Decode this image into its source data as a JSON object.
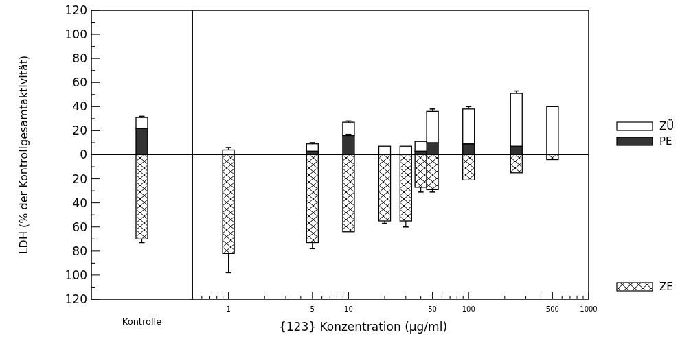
{
  "chart_data": [
    {
      "type": "bar",
      "ylabel": "LDH (% der Kontrollgesamtaktivität)",
      "categories": [
        "Kontrolle"
      ],
      "stacked": true,
      "ylim": [
        -120,
        120
      ],
      "yticks": [
        {
          "value": -120,
          "label": "120"
        },
        {
          "value": -110,
          "label": null
        },
        {
          "value": -100,
          "label": "100"
        },
        {
          "value": -90,
          "label": null
        },
        {
          "value": -80,
          "label": "80"
        },
        {
          "value": -70,
          "label": null
        },
        {
          "value": -60,
          "label": "60"
        },
        {
          "value": -50,
          "label": null
        },
        {
          "value": -40,
          "label": "40"
        },
        {
          "value": -30,
          "label": null
        },
        {
          "value": -20,
          "label": "20"
        },
        {
          "value": -10,
          "label": null
        },
        0,
        {
          "value": 10,
          "label": null
        },
        20,
        {
          "value": 30,
          "label": null
        },
        40,
        {
          "value": 50,
          "label": null
        },
        60,
        {
          "value": 70,
          "label": null
        },
        80,
        {
          "value": 90,
          "label": null
        },
        100,
        {
          "value": 110,
          "label": null
        },
        120
      ],
      "series": [
        {
          "color": "#333333",
          "values": [
            22
          ]
        },
        {
          "color": "#ffffff",
          "values": [
            9
          ],
          "errors": [
            [
              31,
              32
            ]
          ]
        },
        {
          "color": "#ffffff",
          "values": [
            -70
          ],
          "errors": [
            [
              -73,
              -70
            ]
          ]
        }
      ]
    },
    {
      "type": "bar",
      "xlabel": "{123} Konzentration (µg/ml)",
      "x": [
        1,
        5,
        10,
        20,
        30,
        40,
        50,
        100,
        250,
        500
      ],
      "log": "x",
      "xlim": [
        0.5,
        1000
      ],
      "xticks": [
        {
          "value": 0.6,
          "label": null
        },
        {
          "value": 0.7,
          "label": null
        },
        {
          "value": 0.8,
          "label": null
        },
        {
          "value": 0.9,
          "label": null
        },
        1,
        {
          "value": 2,
          "label": null
        },
        {
          "value": 3,
          "label": null
        },
        {
          "value": 4,
          "label": null
        },
        5,
        {
          "value": 6,
          "label": null
        },
        {
          "value": 7,
          "label": null
        },
        {
          "value": 8,
          "label": null
        },
        {
          "value": 9,
          "label": null
        },
        10,
        {
          "value": 20,
          "label": null
        },
        {
          "value": 30,
          "label": null
        },
        {
          "value": 40,
          "label": null
        },
        50,
        {
          "value": 60,
          "label": null
        },
        {
          "value": 70,
          "label": null
        },
        {
          "value": 80,
          "label": null
        },
        {
          "value": 90,
          "label": null
        },
        100,
        {
          "value": 200,
          "label": null
        },
        {
          "value": 300,
          "label": null
        },
        {
          "value": 400,
          "label": null
        },
        500,
        {
          "value": 600,
          "label": null
        },
        {
          "value": 700,
          "label": null
        },
        {
          "value": 800,
          "label": null
        },
        {
          "value": 900,
          "label": null
        },
        1000
      ],
      "ylim": [
        -120,
        120
      ],
      "tick_labels": "x",
      "stacked": true,
      "legend": "right",
      "series": [
        {
          "name": "PE",
          "color": "#333333",
          "values": [
            null,
            3,
            16,
            null,
            null,
            3,
            10,
            9,
            7,
            null
          ],
          "errors": [
            null,
            null,
            [
              16,
              17
            ],
            null,
            null,
            null,
            null,
            null,
            null,
            null
          ]
        },
        {
          "name": "ZÜ",
          "color": "#ffffff",
          "values": [
            4,
            6,
            11,
            7,
            7,
            8,
            26,
            29,
            44,
            40
          ],
          "errors": [
            [
              4,
              6
            ],
            [
              9,
              10
            ],
            [
              27,
              28
            ],
            null,
            null,
            null,
            [
              36,
              38
            ],
            [
              38,
              40
            ],
            [
              51,
              53
            ],
            null
          ]
        },
        {
          "name": "ZE",
          "color": "#ffffff",
          "values": [
            -82,
            -73,
            -64,
            -55,
            -55,
            -27,
            -29,
            -21,
            -15,
            -4
          ],
          "errors": [
            [
              -98,
              -82
            ],
            [
              -78,
              -73
            ],
            null,
            [
              -57,
              -55
            ],
            [
              -60,
              -55
            ],
            [
              -31,
              -27
            ],
            [
              -31,
              -29
            ],
            null,
            null,
            null
          ]
        }
      ]
    }
  ]
}
